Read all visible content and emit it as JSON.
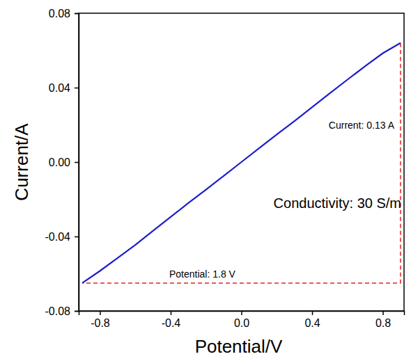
{
  "chart_data": {
    "type": "line",
    "x_label": "Potential/V",
    "y_label": "Current/A",
    "x": [
      -0.9,
      -0.8,
      -0.7,
      -0.6,
      -0.5,
      -0.4,
      -0.3,
      -0.2,
      -0.1,
      0.0,
      0.1,
      0.2,
      0.3,
      0.4,
      0.5,
      0.6,
      0.7,
      0.8,
      0.9
    ],
    "series": [
      {
        "color": "#1c1ccc",
        "line_style": "solid",
        "values": [
          -0.065,
          -0.0585,
          -0.0515,
          -0.0445,
          -0.037,
          -0.0295,
          -0.022,
          -0.0148,
          -0.0074,
          0.0,
          0.0074,
          0.0148,
          0.022,
          0.0295,
          0.037,
          0.0443,
          0.0515,
          0.0585,
          0.064
        ]
      }
    ],
    "xlim": [
      -0.92,
      0.92
    ],
    "ylim": [
      -0.08,
      0.08
    ],
    "xticks": [
      -0.8,
      -0.4,
      {
        "value": 0,
        "label": "0.0"
      },
      0.4,
      0.8
    ],
    "yticks": [
      -0.08,
      -0.04,
      {
        "value": 0,
        "label": "0.00"
      },
      0.04,
      0.08
    ],
    "grid": false,
    "guide_lines": {
      "color": "#e02424",
      "line_style": "dashed",
      "x": [
        0.9,
        0.9,
        -0.9
      ],
      "y": [
        0.064,
        -0.065,
        -0.065
      ]
    },
    "annotations": [
      "Current: 0.13 A",
      "Conductivity: 30 S/m",
      "Potential: 1.8 V"
    ]
  }
}
